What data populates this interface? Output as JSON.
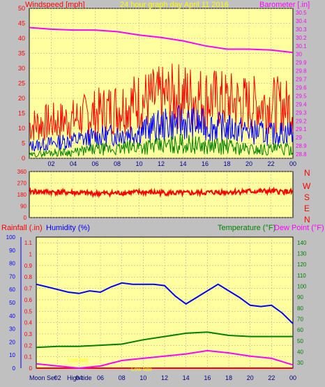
{
  "header": {
    "left_title": "Windspeed [mph]",
    "center_title": "24 hour graph day   April 11 2016",
    "right_title": "Barometer [.in]",
    "colors": {
      "left": "#ff0000",
      "center": "#ffff00",
      "right": "#ff00ff"
    }
  },
  "panel3_labels": {
    "rainfall": "Rainfall (.in)",
    "humidity": "Humidity (%)",
    "temperature": "Temperature (°F)",
    "dewpoint": "Dew Point (°F)",
    "moon_set": "Moon Set",
    "high_tide": "High tide",
    "low_tide_left": "Low tide",
    "low_tide_right": "Low tide"
  },
  "compass_labels": [
    "N",
    "W",
    "S",
    "E",
    "N"
  ],
  "colors": {
    "background": "#c0c0c0",
    "plot_bg": "#ffffa0",
    "wind_high": "#ff0000",
    "wind_mid": "#0000ff",
    "wind_low": "#008000",
    "barometer": "#ff00ff",
    "direction": "#ff0000",
    "humidity": "#0000ff",
    "temperature": "#008000",
    "dewpoint": "#ff00ff",
    "rain": "#ff0000"
  },
  "chart_data": [
    {
      "type": "line",
      "panel": "wind-barometer",
      "title": "24 hour graph day   April 11 2016",
      "x_ticks": [
        "02",
        "04",
        "06",
        "08",
        "10",
        "12",
        "14",
        "16",
        "18",
        "20",
        "22",
        "00"
      ],
      "y_left": {
        "label": "Windspeed [mph]",
        "ticks": [
          0,
          5,
          10,
          15,
          20,
          25,
          30,
          35,
          40,
          45,
          50
        ],
        "range": [
          0,
          50
        ]
      },
      "y_right": {
        "label": "Barometer [.in]",
        "ticks": [
          28.8,
          28.9,
          29,
          29.1,
          29.2,
          29.3,
          29.4,
          29.5,
          29.6,
          29.7,
          29.8,
          29.9,
          30,
          30.1,
          30.2,
          30.3,
          30.4,
          30.5
        ],
        "range": [
          28.75,
          30.55
        ]
      },
      "series": [
        {
          "axis": "right",
          "x": [
            0,
            2,
            4,
            6,
            8,
            10,
            12,
            14,
            16,
            18,
            20,
            22,
            24
          ],
          "values": [
            30.32,
            30.3,
            30.29,
            30.29,
            30.27,
            30.23,
            30.2,
            30.16,
            30.1,
            30.06,
            30.06,
            30.05,
            30.02
          ]
        },
        {
          "axis": "left",
          "x": [
            0,
            2,
            4,
            6,
            8,
            10,
            12,
            14,
            16,
            18,
            20,
            22,
            24
          ],
          "values": [
            11,
            12,
            13,
            15,
            17,
            19,
            20,
            21,
            20,
            19,
            18,
            18,
            17
          ]
        },
        {
          "axis": "left",
          "x": [
            0,
            2,
            4,
            6,
            8,
            10,
            12,
            14,
            16,
            18,
            20,
            22,
            24
          ],
          "values": [
            4,
            5,
            6,
            7,
            8,
            9,
            11,
            12,
            11,
            10,
            9,
            8,
            9
          ]
        },
        {
          "axis": "left",
          "x": [
            0,
            2,
            4,
            6,
            8,
            10,
            12,
            14,
            16,
            18,
            20,
            22,
            24
          ],
          "values": [
            1,
            2,
            2,
            3,
            3,
            4,
            4,
            5,
            4,
            4,
            3,
            3,
            3
          ]
        }
      ]
    },
    {
      "type": "line",
      "panel": "wind-direction",
      "y_ticks": [
        0,
        90,
        180,
        270,
        360
      ],
      "range": [
        0,
        360
      ],
      "series": [
        {
          "x": [
            0,
            2,
            4,
            6,
            8,
            10,
            12,
            14,
            16,
            18,
            20,
            22,
            24
          ],
          "values": [
            205,
            200,
            195,
            188,
            192,
            198,
            195,
            190,
            195,
            200,
            205,
            205,
            200
          ]
        }
      ]
    },
    {
      "type": "line",
      "panel": "rain-humidity-temperature",
      "x_ticks": [
        "02",
        "04",
        "06",
        "08",
        "10",
        "12",
        "14",
        "16",
        "18",
        "20",
        "22",
        "00"
      ],
      "y_far_left": {
        "ticks": [
          0,
          10,
          20,
          30,
          40,
          50,
          60,
          70,
          80,
          90,
          100
        ],
        "range": [
          0,
          100
        ]
      },
      "y_left": {
        "label": "Rainfall (.in)",
        "ticks": [
          0,
          0.1,
          0.2,
          0.3,
          0.4,
          0.5,
          0.6,
          0.7,
          0.8,
          0.9,
          1,
          1.1
        ],
        "range": [
          0,
          1.15
        ]
      },
      "y_right": {
        "label": "Temperature (°F)",
        "ticks": [
          30,
          40,
          50,
          60,
          70,
          80,
          90,
          100,
          110,
          120,
          130,
          140
        ],
        "range": [
          25,
          145
        ]
      },
      "series": [
        {
          "axis": "left",
          "x": [
            0,
            2,
            4,
            6,
            8,
            10,
            12,
            14,
            16,
            18,
            20,
            22,
            24
          ],
          "values": [
            0,
            0,
            0,
            0,
            0,
            0,
            0,
            0,
            0,
            0,
            0,
            0,
            0
          ]
        },
        {
          "axis": "far_left",
          "x": [
            0,
            1,
            2,
            3,
            4,
            5,
            6,
            7,
            8,
            9,
            10,
            11,
            12,
            13,
            14,
            15,
            16,
            17,
            18,
            19,
            20,
            21,
            22,
            23,
            24
          ],
          "values": [
            64,
            62,
            60,
            58,
            57,
            59,
            58,
            62,
            65,
            64,
            64,
            64,
            63,
            55,
            49,
            54,
            59,
            64,
            59,
            54,
            48,
            47,
            48,
            42,
            34
          ]
        },
        {
          "axis": "right",
          "x": [
            0,
            2,
            4,
            6,
            8,
            10,
            12,
            14,
            16,
            18,
            20,
            22,
            24
          ],
          "values": [
            44,
            45,
            45,
            46,
            47,
            51,
            54,
            57,
            58,
            55,
            54,
            54,
            54
          ]
        },
        {
          "axis": "right",
          "x": [
            0,
            2,
            4,
            6,
            8,
            10,
            12,
            14,
            16,
            18,
            20,
            22,
            24
          ],
          "values": [
            29,
            27,
            25,
            27,
            32,
            34,
            36,
            38,
            41,
            39,
            36,
            34,
            28
          ]
        }
      ]
    }
  ]
}
